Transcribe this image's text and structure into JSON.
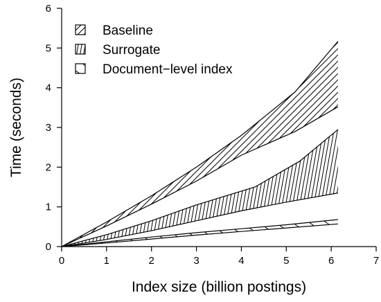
{
  "chart_data": {
    "type": "area",
    "xlabel": "Index size (billion postings)",
    "ylabel": "Time (seconds)",
    "xlim": [
      0,
      7
    ],
    "ylim": [
      0,
      6
    ],
    "xticks": [
      "0",
      "1",
      "2",
      "3",
      "4",
      "5",
      "6",
      "7"
    ],
    "yticks": [
      "0",
      "1",
      "2",
      "3",
      "4",
      "5",
      "6"
    ],
    "grid": false,
    "legend_position": "top-left",
    "series": [
      {
        "name": "Baseline",
        "hatch": "diagonal-forward",
        "upper": [
          [
            0,
            0
          ],
          [
            1,
            0.62
          ],
          [
            2,
            1.28
          ],
          [
            3,
            2.0
          ],
          [
            4,
            2.8
          ],
          [
            5.2,
            3.9
          ],
          [
            6.15,
            5.17
          ]
        ],
        "lower": [
          [
            0,
            0
          ],
          [
            1,
            0.52
          ],
          [
            2,
            1.07
          ],
          [
            3,
            1.65
          ],
          [
            4,
            2.3
          ],
          [
            5.2,
            2.9
          ],
          [
            6.15,
            3.52
          ]
        ]
      },
      {
        "name": "Surrogate",
        "hatch": "diagonal-backward",
        "upper": [
          [
            0,
            0
          ],
          [
            1,
            0.3
          ],
          [
            2,
            0.65
          ],
          [
            3,
            1.05
          ],
          [
            4.3,
            1.5
          ],
          [
            5.3,
            2.15
          ],
          [
            6.15,
            2.95
          ]
        ],
        "lower": [
          [
            0,
            0
          ],
          [
            1,
            0.18
          ],
          [
            2,
            0.4
          ],
          [
            3,
            0.65
          ],
          [
            4,
            0.9
          ],
          [
            5,
            1.12
          ],
          [
            6.15,
            1.35
          ]
        ]
      },
      {
        "name": "Document−level index",
        "hatch": "diagonal-shallow",
        "upper": [
          [
            0,
            0
          ],
          [
            1,
            0.12
          ],
          [
            2,
            0.24
          ],
          [
            3,
            0.35
          ],
          [
            4,
            0.45
          ],
          [
            5,
            0.55
          ],
          [
            6.15,
            0.68
          ]
        ],
        "lower": [
          [
            0,
            0
          ],
          [
            1,
            0.09
          ],
          [
            2,
            0.19
          ],
          [
            3,
            0.29
          ],
          [
            4,
            0.38
          ],
          [
            5,
            0.47
          ],
          [
            6.15,
            0.57
          ]
        ]
      }
    ]
  }
}
